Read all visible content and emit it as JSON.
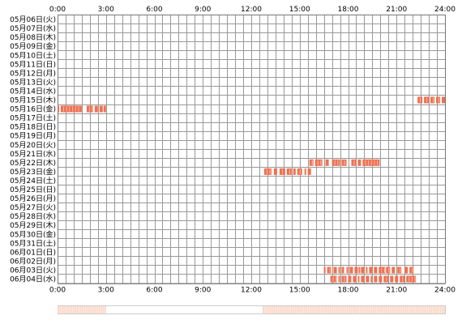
{
  "chart_data": {
    "type": "heatmap",
    "x_unit": "hour of day",
    "xlim": [
      0,
      24
    ],
    "x_ticks": [
      {
        "hour": 0,
        "label": "0:00"
      },
      {
        "hour": 3,
        "label": "3:00"
      },
      {
        "hour": 6,
        "label": "6:00"
      },
      {
        "hour": 9,
        "label": "9:00"
      },
      {
        "hour": 12,
        "label": "12:00"
      },
      {
        "hour": 15,
        "label": "15:00"
      },
      {
        "hour": 18,
        "label": "18:00"
      },
      {
        "hour": 21,
        "label": "21:00"
      },
      {
        "hour": 24,
        "label": "24:00"
      }
    ],
    "days": [
      "05月06日(火)",
      "05月07日(水)",
      "05月08日(木)",
      "05月09日(金)",
      "05月10日(土)",
      "05月11日(日)",
      "05月12日(月)",
      "05月13日(火)",
      "05月14日(水)",
      "05月15日(木)",
      "05月16日(金)",
      "05月17日(土)",
      "05月18日(日)",
      "05月19日(月)",
      "05月20日(火)",
      "05月21日(水)",
      "05月22日(木)",
      "05月23日(金)",
      "05月24日(土)",
      "05月25日(日)",
      "05月26日(月)",
      "05月27日(火)",
      "05月28日(水)",
      "05月29日(木)",
      "05月30日(金)",
      "05月31日(土)",
      "06月01日(日)",
      "06月02日(月)",
      "06月03日(火)",
      "06月04日(水)"
    ],
    "activity": [
      {
        "day": 9,
        "segments": [
          [
            22.3,
            22.6
          ],
          [
            22.7,
            23.0
          ],
          [
            23.1,
            23.35
          ],
          [
            23.45,
            23.7
          ],
          [
            23.8,
            24.0
          ]
        ]
      },
      {
        "day": 10,
        "segments": [
          [
            0.0,
            0.1
          ],
          [
            0.2,
            1.5
          ],
          [
            1.8,
            2.2
          ],
          [
            2.3,
            2.5
          ],
          [
            2.6,
            2.8
          ],
          [
            2.85,
            3.0
          ]
        ]
      },
      {
        "day": 16,
        "segments": [
          [
            15.6,
            15.85
          ],
          [
            15.95,
            16.4
          ],
          [
            16.6,
            16.8
          ],
          [
            17.0,
            17.5
          ],
          [
            17.6,
            17.9
          ],
          [
            18.2,
            18.5
          ],
          [
            18.6,
            18.8
          ],
          [
            18.9,
            19.95
          ]
        ]
      },
      {
        "day": 17,
        "segments": [
          [
            12.8,
            13.25
          ],
          [
            13.4,
            13.6
          ],
          [
            13.75,
            14.1
          ],
          [
            14.2,
            14.5
          ],
          [
            14.6,
            14.75
          ],
          [
            14.85,
            15.15
          ],
          [
            15.3,
            15.4
          ],
          [
            15.5,
            15.7
          ]
        ]
      },
      {
        "day": 28,
        "segments": [
          [
            16.5,
            16.6
          ],
          [
            16.7,
            16.95
          ],
          [
            17.1,
            17.3
          ],
          [
            17.4,
            17.5
          ],
          [
            17.6,
            17.75
          ],
          [
            17.9,
            18.0
          ],
          [
            18.1,
            18.3
          ],
          [
            18.4,
            18.6
          ],
          [
            18.65,
            18.75
          ],
          [
            18.8,
            19.0
          ],
          [
            19.1,
            19.2
          ],
          [
            19.3,
            19.5
          ],
          [
            19.6,
            19.8
          ],
          [
            19.9,
            20.3
          ],
          [
            20.35,
            20.6
          ],
          [
            20.7,
            20.9
          ],
          [
            21.05,
            21.3
          ],
          [
            21.5,
            21.7
          ],
          [
            21.8,
            22.05
          ]
        ]
      },
      {
        "day": 29,
        "segments": [
          [
            16.9,
            17.3
          ],
          [
            17.4,
            17.5
          ],
          [
            17.6,
            17.9
          ],
          [
            18.0,
            18.2
          ],
          [
            18.3,
            18.5
          ],
          [
            18.6,
            18.7
          ],
          [
            18.8,
            19.0
          ],
          [
            19.1,
            19.3
          ],
          [
            19.4,
            19.5
          ],
          [
            19.6,
            19.8
          ],
          [
            19.9,
            20.1
          ],
          [
            20.2,
            20.5
          ],
          [
            20.6,
            20.8
          ],
          [
            20.9,
            21.1
          ],
          [
            21.2,
            21.5
          ],
          [
            21.6,
            22.2
          ]
        ]
      }
    ],
    "summary_strip": [
      [
        0.0,
        3.0
      ],
      [
        12.7,
        24.0
      ]
    ],
    "colors": {
      "activity": "#f07050",
      "activity_gap": "#ffffff",
      "grid": "#999999",
      "summary": "#fcd8c8",
      "day_label": "#000000"
    },
    "grid": true
  }
}
